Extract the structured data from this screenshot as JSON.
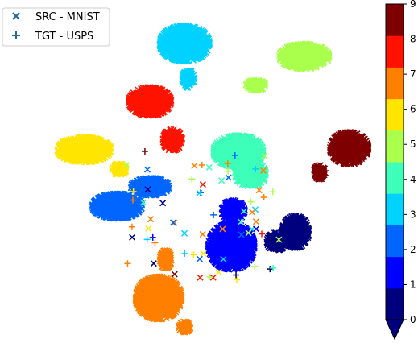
{
  "chart_data": {
    "type": "scatter",
    "title": "",
    "xlabel": "",
    "ylabel": "",
    "axes_visible": false,
    "legend": {
      "placement": "top-left",
      "entries": [
        {
          "label": "SRC - MNIST",
          "marker": "x",
          "color": "#1f6aa5"
        },
        {
          "label": "TGT - USPS",
          "marker": "+",
          "color": "#1f6aa5"
        }
      ]
    },
    "colorbar": {
      "placement": "right",
      "min": 0,
      "max": 9,
      "ticks": [
        "0",
        "1",
        "2",
        "3",
        "4",
        "5",
        "6",
        "7",
        "8",
        "9"
      ],
      "extend": "min",
      "colors": [
        "#00007f",
        "#0000fe",
        "#0066ff",
        "#00d2ff",
        "#3dffb9",
        "#aaff4d",
        "#ffe500",
        "#ff7f00",
        "#ff1300",
        "#7f0000"
      ]
    },
    "clusters": [
      {
        "class": 0,
        "color": "#00007f",
        "cx": 0.66,
        "cy": 0.38,
        "rx": 0.07,
        "ry": 0.09
      },
      {
        "class": 0,
        "color": "#00007f",
        "cx": 0.55,
        "cy": 0.44,
        "rx": 0.05,
        "ry": 0.05
      },
      {
        "class": 1,
        "color": "#0000fe",
        "cx": 0.29,
        "cy": 0.47,
        "rx": 0.12,
        "ry": 0.13
      },
      {
        "class": 1,
        "color": "#0000fe",
        "cx": 0.3,
        "cy": 0.25,
        "rx": 0.06,
        "ry": 0.06
      },
      {
        "class": 2,
        "color": "#0066ff",
        "cx": -0.37,
        "cy": 0.22,
        "rx": 0.13,
        "ry": 0.07
      },
      {
        "class": 2,
        "color": "#0066ff",
        "cx": -0.18,
        "cy": 0.1,
        "rx": 0.1,
        "ry": 0.05
      },
      {
        "class": 3,
        "color": "#00d2ff",
        "cx": 0.02,
        "cy": -0.79,
        "rx": 0.13,
        "ry": 0.1
      },
      {
        "class": 3,
        "color": "#00d2ff",
        "cx": 0.04,
        "cy": -0.57,
        "rx": 0.03,
        "ry": 0.05
      },
      {
        "class": 4,
        "color": "#3dffb9",
        "cx": 0.33,
        "cy": -0.12,
        "rx": 0.13,
        "ry": 0.09
      },
      {
        "class": 4,
        "color": "#3dffb9",
        "cx": 0.4,
        "cy": 0.02,
        "rx": 0.08,
        "ry": 0.07
      },
      {
        "class": 5,
        "color": "#aaff4d",
        "cx": 0.71,
        "cy": -0.71,
        "rx": 0.13,
        "ry": 0.07
      },
      {
        "class": 5,
        "color": "#aaff4d",
        "cx": 0.43,
        "cy": -0.53,
        "rx": 0.05,
        "ry": 0.03
      },
      {
        "class": 6,
        "color": "#ffe500",
        "cx": -0.56,
        "cy": -0.13,
        "rx": 0.14,
        "ry": 0.07
      },
      {
        "class": 6,
        "color": "#ffe500",
        "cx": -0.36,
        "cy": -0.01,
        "rx": 0.04,
        "ry": 0.03
      },
      {
        "class": 7,
        "color": "#ff7f00",
        "cx": -0.13,
        "cy": 0.79,
        "rx": 0.12,
        "ry": 0.12
      },
      {
        "class": 7,
        "color": "#ff7f00",
        "cx": -0.09,
        "cy": 0.55,
        "rx": 0.03,
        "ry": 0.05
      },
      {
        "class": 7,
        "color": "#ff7f00",
        "cx": 0.02,
        "cy": 0.97,
        "rx": 0.03,
        "ry": 0.03
      },
      {
        "class": 8,
        "color": "#ff1300",
        "cx": -0.18,
        "cy": -0.43,
        "rx": 0.11,
        "ry": 0.08
      },
      {
        "class": 8,
        "color": "#ff1300",
        "cx": -0.05,
        "cy": -0.19,
        "rx": 0.05,
        "ry": 0.06
      },
      {
        "class": 9,
        "color": "#7f0000",
        "cx": 0.97,
        "cy": -0.14,
        "rx": 0.1,
        "ry": 0.09
      },
      {
        "class": 9,
        "color": "#7f0000",
        "cx": 0.8,
        "cy": 0.01,
        "rx": 0.03,
        "ry": 0.04
      }
    ]
  }
}
